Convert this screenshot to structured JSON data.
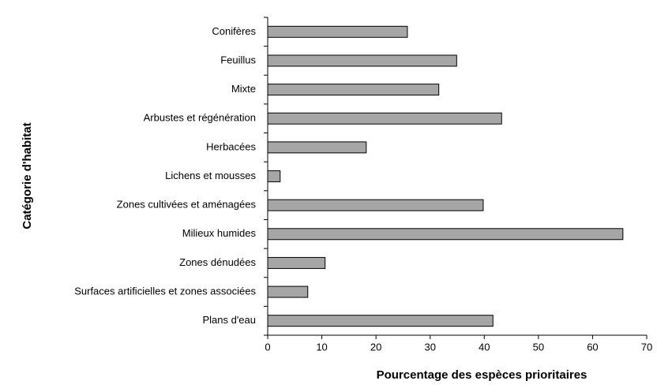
{
  "chart_data": {
    "type": "bar",
    "orientation": "horizontal",
    "xlabel": "Pourcentage des espèces prioritaires",
    "ylabel": "Catégorie d'habitat",
    "categories": [
      "Conifères",
      "Feuillus",
      "Mixte",
      "Arbustes et régénération",
      "Herbacées",
      "Lichens et mousses",
      "Zones cultivées et aménagées",
      "Milieux humides",
      "Zones dénudées",
      "Surfaces artificielles et zones associées",
      "Plans d'eau"
    ],
    "values": [
      25.8,
      34.9,
      31.6,
      43.2,
      18.2,
      2.3,
      39.8,
      65.6,
      10.6,
      7.4,
      41.6
    ],
    "color": "#a6a6a6",
    "xlim": [
      0,
      70
    ],
    "xticks": [
      0,
      10,
      20,
      30,
      40,
      50,
      60,
      70
    ],
    "grid": false
  }
}
